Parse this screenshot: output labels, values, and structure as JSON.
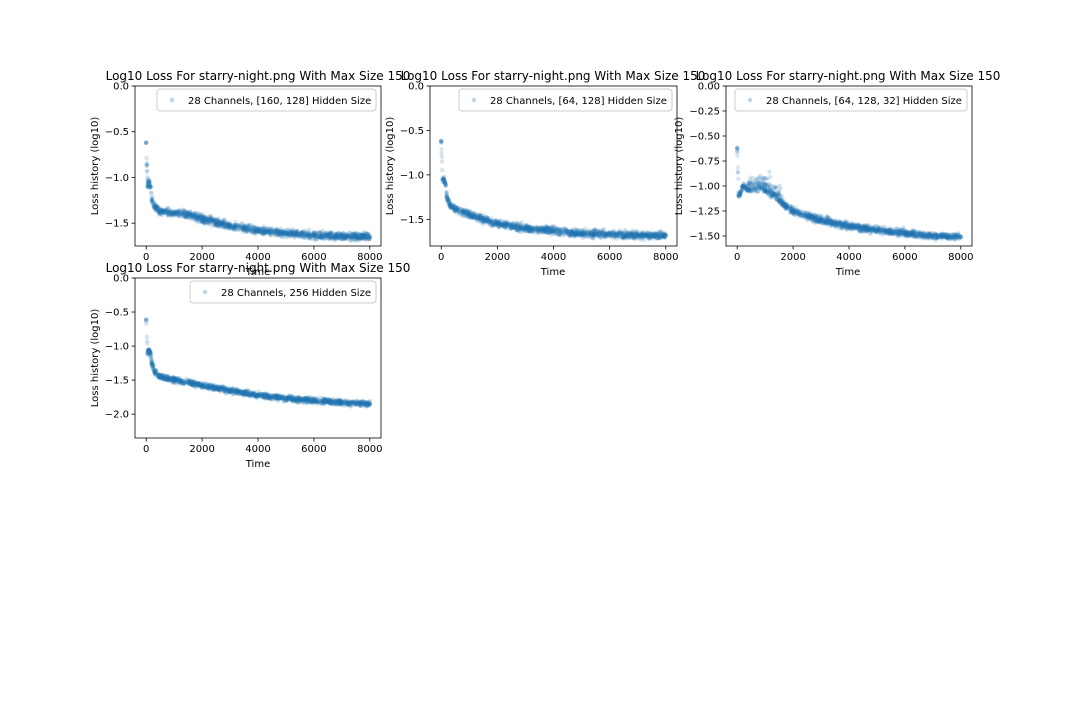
{
  "marker_color": "#1f77b4",
  "chart_data": [
    {
      "type": "scatter",
      "title": "Log10 Loss For starry-night.png With Max Size 150",
      "xlabel": "Time",
      "ylabel": "Loss history (log10)",
      "xlim": [
        -400,
        8400
      ],
      "ylim": [
        -1.75,
        0.0
      ],
      "xticks": [
        0,
        2000,
        4000,
        6000,
        8000
      ],
      "xtick_labels": [
        "0",
        "2000",
        "4000",
        "6000",
        "8000"
      ],
      "yticks": [
        0.0,
        -0.5,
        -1.0,
        -1.5
      ],
      "ytick_labels": [
        "0.0",
        "−0.5",
        "−1.0",
        "−1.5"
      ],
      "legend_position": "top-right",
      "series": [
        {
          "name": "28 Channels, [160, 128] Hidden Size",
          "x": [
            0,
            50,
            100,
            150,
            200,
            300,
            500,
            800,
            1000,
            1500,
            2000,
            3000,
            4000,
            5000,
            6000,
            7000,
            8000
          ],
          "y": [
            -0.62,
            -1.1,
            -1.05,
            -1.1,
            -1.25,
            -1.32,
            -1.37,
            -1.38,
            -1.39,
            -1.41,
            -1.45,
            -1.53,
            -1.58,
            -1.61,
            -1.63,
            -1.64,
            -1.65
          ]
        }
      ]
    },
    {
      "type": "scatter",
      "title": "Log10 Loss For starry-night.png With Max Size 150",
      "xlabel": "Time",
      "ylabel": "Loss history (log10)",
      "xlim": [
        -400,
        8400
      ],
      "ylim": [
        -1.8,
        0.0
      ],
      "xticks": [
        0,
        2000,
        4000,
        6000,
        8000
      ],
      "xtick_labels": [
        "0",
        "2000",
        "4000",
        "6000",
        "8000"
      ],
      "yticks": [
        0.0,
        -0.5,
        -1.0,
        -1.5
      ],
      "ytick_labels": [
        "0.0",
        "−0.5",
        "−1.0",
        "−1.5"
      ],
      "legend_position": "top-right",
      "series": [
        {
          "name": "28 Channels, [64, 128] Hidden Size",
          "x": [
            0,
            50,
            100,
            150,
            200,
            300,
            500,
            800,
            1000,
            1500,
            2000,
            3000,
            4000,
            5000,
            6000,
            7000,
            8000
          ],
          "y": [
            -0.62,
            -1.05,
            -1.05,
            -1.1,
            -1.25,
            -1.33,
            -1.39,
            -1.42,
            -1.45,
            -1.5,
            -1.55,
            -1.6,
            -1.63,
            -1.66,
            -1.67,
            -1.68,
            -1.68
          ]
        }
      ]
    },
    {
      "type": "scatter",
      "title": "Log10 Loss For starry-night.png With Max Size 150",
      "xlabel": "Time",
      "ylabel": "Loss history (log10)",
      "xlim": [
        -400,
        8400
      ],
      "ylim": [
        -1.6,
        0.0
      ],
      "xticks": [
        0,
        2000,
        4000,
        6000,
        8000
      ],
      "xtick_labels": [
        "0",
        "2000",
        "4000",
        "6000",
        "8000"
      ],
      "yticks": [
        0.0,
        -0.25,
        -0.5,
        -0.75,
        -1.0,
        -1.25,
        -1.5
      ],
      "ytick_labels": [
        "0.00",
        "−0.25",
        "−0.50",
        "−0.75",
        "−1.00",
        "−1.25",
        "−1.50"
      ],
      "legend_position": "top-right",
      "series": [
        {
          "name": "28 Channels, [64, 128, 32] Hidden Size",
          "x": [
            0,
            50,
            100,
            200,
            300,
            500,
            800,
            1000,
            1500,
            2000,
            2500,
            3000,
            4000,
            5000,
            6000,
            7000,
            8000
          ],
          "y": [
            -0.62,
            -1.1,
            -1.08,
            -1.0,
            -1.02,
            -1.05,
            -1.02,
            -1.05,
            -1.15,
            -1.25,
            -1.3,
            -1.34,
            -1.4,
            -1.44,
            -1.47,
            -1.5,
            -1.51
          ]
        }
      ]
    },
    {
      "type": "scatter",
      "title": "Log10 Loss For starry-night.png With Max Size 150",
      "xlabel": "Time",
      "ylabel": "Loss history (log10)",
      "xlim": [
        -400,
        8400
      ],
      "ylim": [
        -2.35,
        0.0
      ],
      "xticks": [
        0,
        2000,
        4000,
        6000,
        8000
      ],
      "xtick_labels": [
        "0",
        "2000",
        "4000",
        "6000",
        "8000"
      ],
      "yticks": [
        0.0,
        -0.5,
        -1.0,
        -1.5,
        -2.0
      ],
      "ytick_labels": [
        "0.0",
        "−0.5",
        "−1.0",
        "−1.5",
        "−2.0"
      ],
      "legend_position": "top-right",
      "series": [
        {
          "name": "28 Channels, 256 Hidden Size",
          "x": [
            0,
            50,
            100,
            150,
            200,
            300,
            500,
            800,
            1000,
            1500,
            2000,
            3000,
            4000,
            5000,
            6000,
            7000,
            8000
          ],
          "y": [
            -0.62,
            -1.1,
            -1.05,
            -1.1,
            -1.25,
            -1.38,
            -1.45,
            -1.48,
            -1.5,
            -1.53,
            -1.58,
            -1.65,
            -1.72,
            -1.77,
            -1.8,
            -1.83,
            -1.85
          ]
        }
      ]
    }
  ]
}
